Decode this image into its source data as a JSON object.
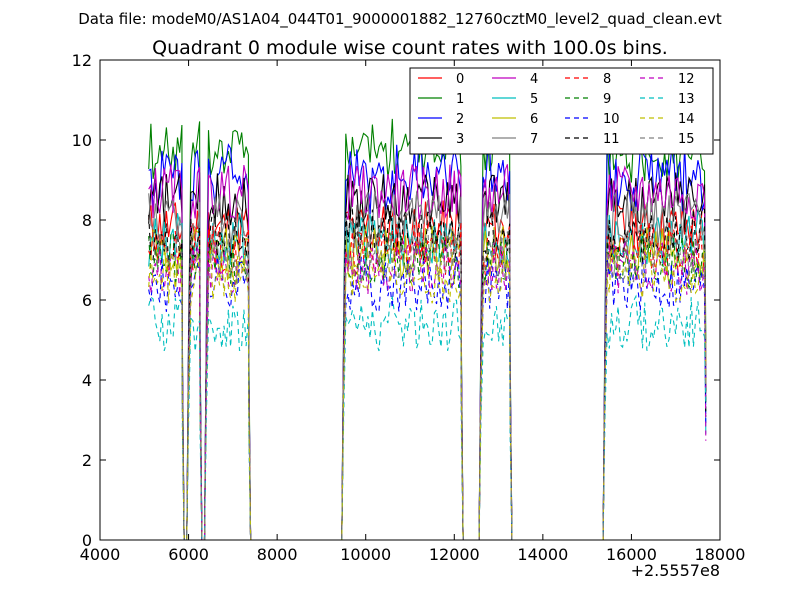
{
  "figure": {
    "suptitle": "Data file: modeM0/AS1A04_044T01_9000001882_12760cztM0_level2_quad_clean.evt",
    "title": "Quadrant 0 module wise count rates with 100.0s bins.",
    "x_offset_label": "+2.5557e8"
  },
  "chart_data": {
    "type": "line",
    "title": "Quadrant 0 module wise count rates with 100.0s bins.",
    "xlabel": "",
    "ylabel": "",
    "xlim": [
      4000,
      18000
    ],
    "ylim": [
      0,
      12
    ],
    "x_ticks": [
      "4000",
      "6000",
      "8000",
      "10000",
      "12000",
      "14000",
      "16000",
      "18000"
    ],
    "y_ticks": [
      "0",
      "2",
      "4",
      "6",
      "8",
      "10",
      "12"
    ],
    "x_offset": "+2.5557e8",
    "grid": false,
    "legend_position": "top-right",
    "legend_columns": 4,
    "segments": [
      {
        "start": 5100,
        "end": 5900,
        "ramp": "none"
      },
      {
        "start": 6000,
        "end": 6300,
        "ramp": "down"
      },
      {
        "start": 6400,
        "end": 7400,
        "ramp": "both"
      },
      {
        "start": 9500,
        "end": 12200,
        "ramp": "both"
      },
      {
        "start": 12600,
        "end": 13300,
        "ramp": "both"
      },
      {
        "start": 15400,
        "end": 17700,
        "ramp": "up-end"
      }
    ],
    "series": [
      {
        "name": "0",
        "color": "#ff0000",
        "dash": "solid",
        "level": 7.8
      },
      {
        "name": "1",
        "color": "#008000",
        "dash": "solid",
        "level": 9.8
      },
      {
        "name": "2",
        "color": "#0000ff",
        "dash": "solid",
        "level": 9.1
      },
      {
        "name": "3",
        "color": "#000000",
        "dash": "solid",
        "level": 8.5
      },
      {
        "name": "4",
        "color": "#bf00bf",
        "dash": "solid",
        "level": 8.7
      },
      {
        "name": "5",
        "color": "#00bfbf",
        "dash": "solid",
        "level": 7.5
      },
      {
        "name": "6",
        "color": "#bfbf00",
        "dash": "solid",
        "level": 7.2
      },
      {
        "name": "7",
        "color": "#808080",
        "dash": "solid",
        "level": 8.0
      },
      {
        "name": "8",
        "color": "#ff0000",
        "dash": "dashed",
        "level": 7.3
      },
      {
        "name": "9",
        "color": "#008000",
        "dash": "dashed",
        "level": 7.0
      },
      {
        "name": "10",
        "color": "#0000ff",
        "dash": "dashed",
        "level": 6.4
      },
      {
        "name": "11",
        "color": "#000000",
        "dash": "dashed",
        "level": 7.6
      },
      {
        "name": "12",
        "color": "#bf00bf",
        "dash": "dashed",
        "level": 6.8
      },
      {
        "name": "13",
        "color": "#00bfbf",
        "dash": "dashed",
        "level": 5.4
      },
      {
        "name": "14",
        "color": "#bfbf00",
        "dash": "dashed",
        "level": 6.6
      },
      {
        "name": "15",
        "color": "#808080",
        "dash": "dashed",
        "level": 7.1
      }
    ]
  }
}
